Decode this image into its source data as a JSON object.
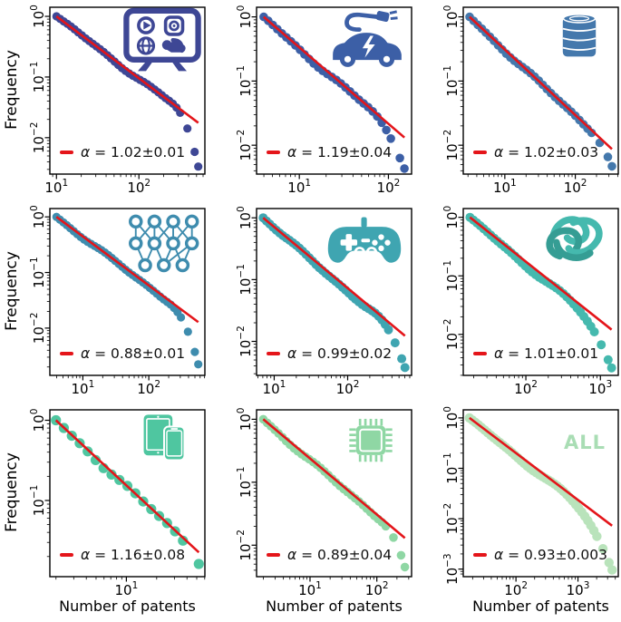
{
  "figure": {
    "ylabel": "Frequency",
    "xlabel": "Number of patents",
    "background": "#ffffff",
    "fit_line_color": "#e4151a",
    "axis_color": "#000000",
    "grid": "off",
    "layout": "3x3 log-log power-law panels"
  },
  "chart_data": [
    {
      "id": "streaming-media",
      "type": "scatter",
      "xscale": "log",
      "yscale": "log",
      "icon": "streaming-tv",
      "color": "#3e4795",
      "legend": {
        "symbol": "α",
        "text": " = 1.02±0.01",
        "alpha": 1.02,
        "error": 0.01
      },
      "fit_alpha": 1.02,
      "x_extent_log10": [
        1.0,
        2.72
      ],
      "xlim_log10": [
        0.92,
        2.8
      ],
      "ylim_log10": [
        -2.6,
        0.15
      ],
      "xtick_exponents": [
        1,
        2
      ],
      "ytick_exponents": [
        0,
        -1,
        -2
      ],
      "tail": {
        "start_frac": 0.8,
        "extra_drop_log10": 0.72
      },
      "n_points": 40
    },
    {
      "id": "electric-vehicles",
      "type": "scatter",
      "xscale": "log",
      "yscale": "log",
      "icon": "electric-car",
      "color": "#3c5fa6",
      "legend": {
        "symbol": "α",
        "text": " = 1.19±0.04",
        "alpha": 1.19,
        "error": 0.04
      },
      "fit_alpha": 1.19,
      "x_extent_log10": [
        0.6,
        2.18
      ],
      "xlim_log10": [
        0.52,
        2.26
      ],
      "ylim_log10": [
        -2.45,
        0.15
      ],
      "xtick_exponents": [
        1,
        2
      ],
      "ytick_exponents": [
        0,
        -1,
        -2
      ],
      "tail": {
        "start_frac": 0.72,
        "extra_drop_log10": 0.45
      },
      "n_points": 32
    },
    {
      "id": "oil",
      "type": "scatter",
      "xscale": "log",
      "yscale": "log",
      "icon": "oil-barrel",
      "color": "#4478ac",
      "legend": {
        "symbol": "α",
        "text": " = 1.02±0.03",
        "alpha": 1.02,
        "error": 0.03
      },
      "fit_alpha": 1.02,
      "x_extent_log10": [
        0.5,
        2.52
      ],
      "xlim_log10": [
        0.41,
        2.61
      ],
      "ylim_log10": [
        -2.45,
        0.15
      ],
      "xtick_exponents": [
        1,
        2
      ],
      "ytick_exponents": [
        0,
        -1,
        -2
      ],
      "tail": {
        "start_frac": 0.85,
        "extra_drop_log10": 0.27
      },
      "n_points": 36
    },
    {
      "id": "neural-networks",
      "type": "scatter",
      "xscale": "log",
      "yscale": "log",
      "icon": "neural-network",
      "color": "#3e8cae",
      "legend": {
        "symbol": "α",
        "text": " = 0.88±0.01",
        "alpha": 0.88,
        "error": 0.01
      },
      "fit_alpha": 0.88,
      "x_extent_log10": [
        0.6,
        2.75
      ],
      "xlim_log10": [
        0.5,
        2.85
      ],
      "ylim_log10": [
        -2.85,
        0.15
      ],
      "xtick_exponents": [
        1,
        2
      ],
      "ytick_exponents": [
        0,
        -1,
        -2
      ],
      "tail": {
        "start_frac": 0.78,
        "extra_drop_log10": 0.78
      },
      "n_points": 42
    },
    {
      "id": "gaming",
      "type": "scatter",
      "xscale": "log",
      "yscale": "log",
      "icon": "game-controller",
      "color": "#3fa5b1",
      "legend": {
        "symbol": "α",
        "text": " = 0.99±0.02",
        "alpha": 0.99,
        "error": 0.02
      },
      "fit_alpha": 0.99,
      "x_extent_log10": [
        0.85,
        2.78
      ],
      "xlim_log10": [
        0.76,
        2.87
      ],
      "ylim_log10": [
        -2.55,
        0.15
      ],
      "xtick_exponents": [
        1,
        2
      ],
      "ytick_exponents": [
        0,
        -1,
        -2
      ],
      "tail": {
        "start_frac": 0.75,
        "extra_drop_log10": 0.52
      },
      "n_points": 44
    },
    {
      "id": "proteins",
      "type": "scatter",
      "xscale": "log",
      "yscale": "log",
      "icon": "protein",
      "color": "#45b9ae",
      "legend": {
        "symbol": "α",
        "text": " = 1.01±0.01",
        "alpha": 1.01,
        "error": 0.01
      },
      "fit_alpha": 1.01,
      "x_extent_log10": [
        1.25,
        3.15
      ],
      "xlim_log10": [
        1.16,
        3.24
      ],
      "ylim_log10": [
        -2.7,
        0.15
      ],
      "xtick_exponents": [
        2,
        3
      ],
      "ytick_exponents": [
        0,
        -1,
        -2
      ],
      "tail": {
        "start_frac": 0.62,
        "extra_drop_log10": 0.63
      },
      "n_points": 42
    },
    {
      "id": "mobile-devices",
      "type": "scatter",
      "xscale": "log",
      "yscale": "log",
      "icon": "mobile-devices",
      "color": "#4fc6a0",
      "legend": {
        "symbol": "α",
        "text": " = 1.16±0.08",
        "alpha": 1.16,
        "error": 0.08
      },
      "fit_alpha": 1.16,
      "x_extent_log10": [
        0.3,
        1.72
      ],
      "xlim_log10": [
        0.24,
        1.78
      ],
      "ylim_log10": [
        -1.95,
        0.13
      ],
      "xtick_exponents": [
        1
      ],
      "ytick_exponents": [
        0,
        -1
      ],
      "tail": {
        "start_frac": 0.85,
        "extra_drop_log10": 0.12
      },
      "n_points": 19
    },
    {
      "id": "semiconductors",
      "type": "scatter",
      "xscale": "log",
      "yscale": "log",
      "icon": "microchip",
      "color": "#8fd7a4",
      "legend": {
        "symbol": "α",
        "text": " = 0.89±0.04",
        "alpha": 0.89,
        "error": 0.04
      },
      "fit_alpha": 0.89,
      "x_extent_log10": [
        0.3,
        2.42
      ],
      "xlim_log10": [
        0.2,
        2.52
      ],
      "ylim_log10": [
        -2.5,
        0.15
      ],
      "xtick_exponents": [
        1,
        2
      ],
      "ytick_exponents": [
        0,
        -1,
        -2
      ],
      "tail": {
        "start_frac": 0.82,
        "extra_drop_log10": 0.48
      },
      "n_points": 38
    },
    {
      "id": "all",
      "type": "scatter",
      "xscale": "log",
      "yscale": "log",
      "icon": "none",
      "color": "#b9e3bb",
      "watermark": "ALL",
      "watermark_color": "#a9ddb4",
      "legend": {
        "symbol": "α",
        "text": " = 0.93±0.003",
        "alpha": 0.93,
        "error": 0.003
      },
      "fit_alpha": 0.93,
      "x_extent_log10": [
        1.25,
        3.55
      ],
      "xlim_log10": [
        1.15,
        3.65
      ],
      "ylim_log10": [
        -3.15,
        0.16
      ],
      "xtick_exponents": [
        2,
        3
      ],
      "ytick_exponents": [
        0,
        -1,
        -2,
        -3
      ],
      "tail": {
        "start_frac": 0.6,
        "extra_drop_log10": 0.85
      },
      "n_points": 48
    }
  ]
}
